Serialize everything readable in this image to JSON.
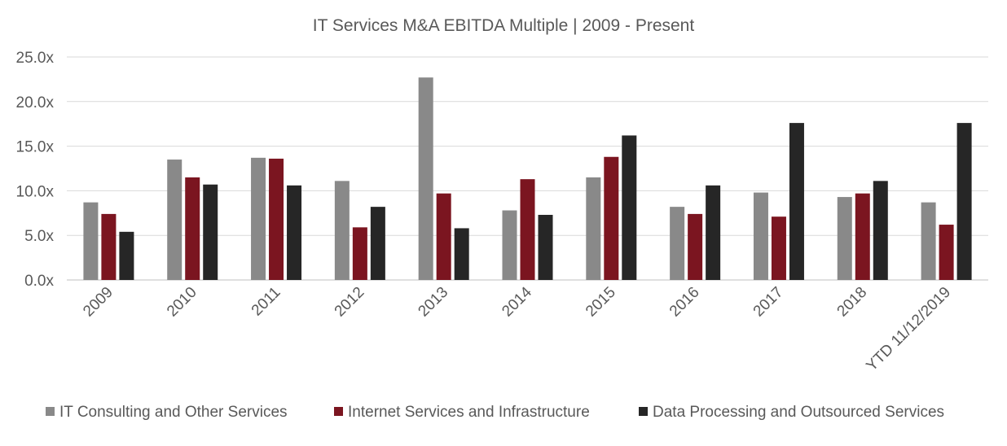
{
  "chart_data": {
    "type": "bar",
    "title": "IT Services M&A EBITDA Multiple | 2009 - Present",
    "xlabel": "",
    "ylabel": "",
    "categories": [
      "2009",
      "2010",
      "2011",
      "2012",
      "2013",
      "2014",
      "2015",
      "2016",
      "2017",
      "2018",
      "YTD 11/12/2019"
    ],
    "ylim": [
      0,
      25
    ],
    "yticks": [
      0,
      5,
      10,
      15,
      20,
      25
    ],
    "ytick_labels": [
      "0.0x",
      "5.0x",
      "10.0x",
      "15.0x",
      "20.0x",
      "25.0x"
    ],
    "grid": true,
    "legend_position": "bottom",
    "series": [
      {
        "name": "IT Consulting and Other Services",
        "color": "#898989",
        "values": [
          8.7,
          13.5,
          13.7,
          11.1,
          22.7,
          7.8,
          11.5,
          8.2,
          9.8,
          9.3,
          8.7
        ]
      },
      {
        "name": "Internet Services and Infrastructure",
        "color": "#7b1520",
        "values": [
          7.4,
          11.5,
          13.6,
          5.9,
          9.7,
          11.3,
          13.8,
          7.4,
          7.1,
          9.7,
          6.2
        ]
      },
      {
        "name": "Data Processing and Outsourced Services",
        "color": "#262626",
        "values": [
          5.4,
          10.7,
          10.6,
          8.2,
          5.8,
          7.3,
          16.2,
          10.6,
          17.6,
          11.1,
          17.6
        ]
      }
    ]
  }
}
